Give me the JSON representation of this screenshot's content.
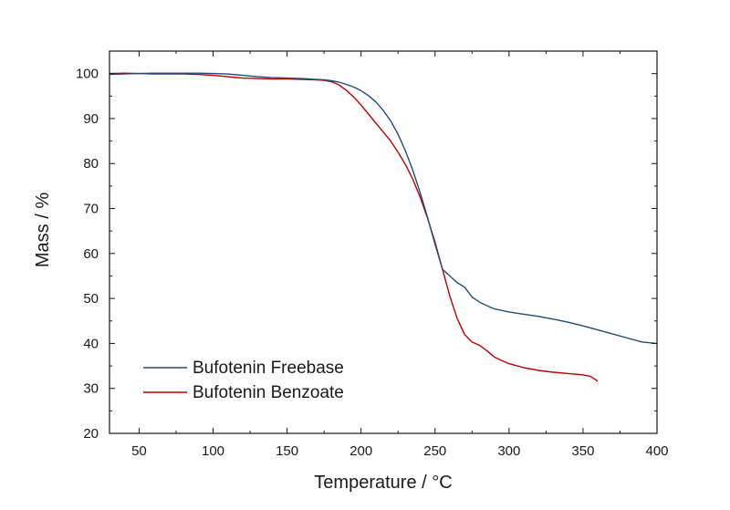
{
  "chart_data": {
    "type": "line",
    "xlabel": "Temperature / °C",
    "ylabel": "Mass / %",
    "xlim": [
      30,
      400
    ],
    "ylim": [
      20,
      105
    ],
    "x_ticks": [
      50,
      100,
      150,
      200,
      250,
      300,
      350,
      400
    ],
    "y_ticks": [
      20,
      30,
      40,
      50,
      60,
      70,
      80,
      90,
      100
    ],
    "grid": false,
    "legend_position": "bottom-left",
    "series": [
      {
        "name": "Bufotenin Freebase",
        "color": "#1f4e79",
        "x": [
          30,
          40,
          50,
          60,
          70,
          80,
          90,
          100,
          110,
          120,
          130,
          140,
          150,
          160,
          170,
          175,
          180,
          185,
          190,
          195,
          200,
          205,
          210,
          215,
          220,
          225,
          230,
          235,
          240,
          245,
          250,
          255,
          260,
          265,
          270,
          275,
          280,
          285,
          290,
          300,
          310,
          320,
          330,
          340,
          350,
          360,
          370,
          380,
          390,
          400
        ],
        "y": [
          99.8,
          99.9,
          100.0,
          100.1,
          100.1,
          100.1,
          100.1,
          100.0,
          99.9,
          99.6,
          99.3,
          99.1,
          99.0,
          98.9,
          98.7,
          98.6,
          98.4,
          98.1,
          97.6,
          97.0,
          96.2,
          95.1,
          93.7,
          91.8,
          89.5,
          86.5,
          82.8,
          78.5,
          73.5,
          68.0,
          62.0,
          56.5,
          55.0,
          53.5,
          52.5,
          50.3,
          49.2,
          48.4,
          47.7,
          47.0,
          46.5,
          46.0,
          45.4,
          44.7,
          43.9,
          43.0,
          42.1,
          41.2,
          40.3,
          40.0
        ]
      },
      {
        "name": "Bufotenin Benzoate",
        "color": "#c00000",
        "x": [
          30,
          40,
          50,
          60,
          70,
          80,
          90,
          100,
          110,
          120,
          130,
          140,
          150,
          160,
          170,
          175,
          180,
          185,
          190,
          195,
          200,
          205,
          210,
          215,
          220,
          225,
          230,
          235,
          240,
          245,
          250,
          255,
          260,
          265,
          270,
          275,
          280,
          285,
          290,
          295,
          300,
          310,
          320,
          330,
          340,
          350,
          355,
          360
        ],
        "y": [
          100.0,
          100.1,
          100.0,
          99.9,
          99.9,
          99.9,
          99.8,
          99.6,
          99.3,
          99.0,
          98.9,
          98.8,
          98.8,
          98.7,
          98.6,
          98.5,
          98.2,
          97.5,
          96.3,
          94.8,
          93.0,
          91.0,
          89.0,
          87.0,
          85.0,
          82.5,
          79.8,
          76.5,
          72.5,
          67.8,
          62.5,
          56.5,
          50.5,
          45.5,
          42.0,
          40.3,
          39.6,
          38.4,
          37.0,
          36.2,
          35.5,
          34.6,
          34.0,
          33.6,
          33.3,
          33.0,
          32.7,
          31.6
        ]
      }
    ]
  }
}
